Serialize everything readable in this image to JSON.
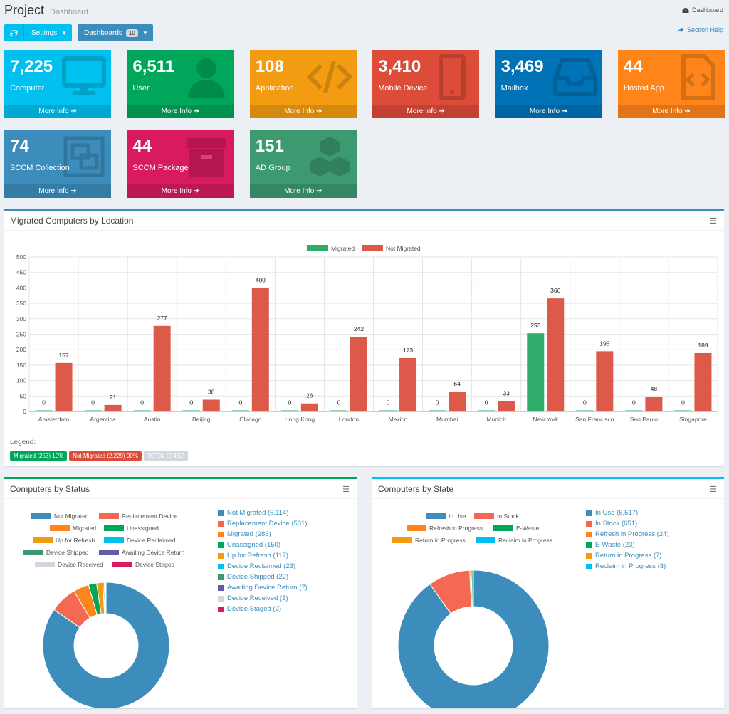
{
  "header": {
    "title": "Project",
    "subtitle": "Dashboard",
    "breadcrumb": "Dashboard",
    "help": "Section Help"
  },
  "toolbar": {
    "settings_label": "Settings",
    "dashboards_label": "Dashboards",
    "dashboards_count": "10"
  },
  "tiles": [
    {
      "value": "7,225",
      "label": "Computer",
      "more": "More Info",
      "color": "#00c0ef",
      "icon": "monitor-icon"
    },
    {
      "value": "6,511",
      "label": "User",
      "more": "More Info",
      "color": "#00a65a",
      "icon": "user-icon"
    },
    {
      "value": "108",
      "label": "Application",
      "more": "More Info",
      "color": "#f39c12",
      "icon": "code-icon"
    },
    {
      "value": "3,410",
      "label": "Mobile Device",
      "more": "More Info",
      "color": "#dd4b39",
      "icon": "mobile-icon"
    },
    {
      "value": "3,469",
      "label": "Mailbox",
      "more": "More Info",
      "color": "#0073b7",
      "icon": "inbox-icon"
    },
    {
      "value": "44",
      "label": "Hosted App",
      "more": "More Info",
      "color": "#ff851b",
      "icon": "file-code-icon"
    },
    {
      "value": "74",
      "label": "SCCM Collection",
      "more": "More Info",
      "color": "#3c8dbc",
      "icon": "object-group-icon"
    },
    {
      "value": "44",
      "label": "SCCM Package",
      "more": "More Info",
      "color": "#d81b60",
      "icon": "archive-icon"
    },
    {
      "value": "151",
      "label": "AD Group",
      "more": "More Info",
      "color": "#3d9970",
      "icon": "cubes-icon"
    }
  ],
  "migrated_panel": {
    "title": "Migrated Computers by Location",
    "legend_title": "Legend:",
    "badges": [
      {
        "text": "Migrated (253)  10%",
        "color": "#00a65a"
      },
      {
        "text": "Not Migrated (2,229)  90%",
        "color": "#dd4b39"
      },
      {
        "text": "TOTAL (2,482)",
        "color": "#d2d6de"
      }
    ]
  },
  "status_panel": {
    "title": "Computers by Status"
  },
  "state_panel": {
    "title": "Computers by State"
  },
  "chart_data": [
    {
      "type": "bar",
      "title": "Migrated Computers by Location",
      "categories": [
        "Amsterdam",
        "Argentina",
        "Austin",
        "Beijing",
        "Chicago",
        "Hong Kong",
        "London",
        "Mexico",
        "Mumbai",
        "Munich",
        "New York",
        "San Francisco",
        "Sao Paulo",
        "Singapore"
      ],
      "series": [
        {
          "name": "Migrated",
          "color": "#2fab6a",
          "values": [
            0,
            0,
            0,
            0,
            0,
            0,
            0,
            0,
            0,
            0,
            253,
            0,
            0,
            0
          ]
        },
        {
          "name": "Not Migrated",
          "color": "#dd5a4b",
          "values": [
            157,
            21,
            277,
            38,
            400,
            26,
            242,
            173,
            64,
            33,
            366,
            195,
            48,
            189
          ]
        }
      ],
      "ylim": [
        0,
        500
      ],
      "yticks": [
        0,
        50,
        100,
        150,
        200,
        250,
        300,
        350,
        400,
        450,
        500
      ],
      "grid": true,
      "legend": "top-center"
    },
    {
      "type": "pie",
      "title": "Computers by Status",
      "labels": [
        "Not Migrated",
        "Replacement Device",
        "Migrated",
        "Unassigned",
        "Up for Refresh",
        "Device Reclaimed",
        "Device Shipped",
        "Awaiting Device Return",
        "Device Received",
        "Device Staged"
      ],
      "values": [
        6114,
        501,
        286,
        150,
        117,
        23,
        22,
        7,
        3,
        2
      ],
      "colors": [
        "#3c8dbc",
        "#f56954",
        "#ff851b",
        "#00a65a",
        "#f39c12",
        "#00c0ef",
        "#3d9970",
        "#605ca8",
        "#d2d6de",
        "#d81b60"
      ],
      "list_labels": [
        "Not Migrated (6,114)",
        "Replacement Device (501)",
        "Migrated (286)",
        "Unassigned (150)",
        "Up for Refresh (117)",
        "Device Reclaimed (23)",
        "Device Shipped (22)",
        "Awaiting Device Return (7)",
        "Device Received (3)",
        "Device Staged (2)"
      ],
      "legend": "top"
    },
    {
      "type": "pie",
      "title": "Computers by State",
      "labels": [
        "In Use",
        "In Stock",
        "Refresh in Progress",
        "E-Waste",
        "Return in Progress",
        "Reclaim in Progress"
      ],
      "values": [
        6517,
        651,
        24,
        23,
        7,
        3
      ],
      "colors": [
        "#3c8dbc",
        "#f56954",
        "#ff851b",
        "#00a65a",
        "#f39c12",
        "#00c0ef"
      ],
      "list_labels": [
        "In Use (6,517)",
        "In Stock (651)",
        "Refresh in Progress (24)",
        "E-Waste (23)",
        "Return in Progress (7)",
        "Reclaim in Progress (3)"
      ],
      "legend": "top"
    }
  ]
}
